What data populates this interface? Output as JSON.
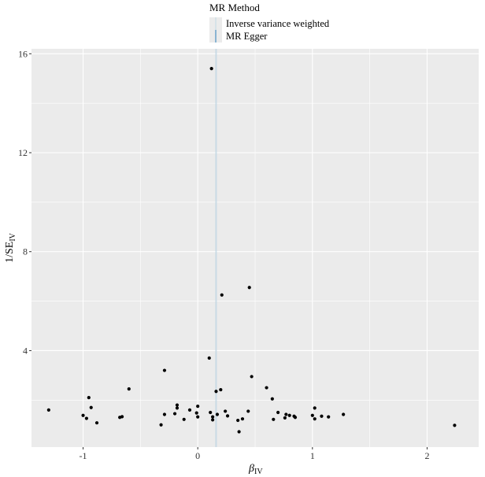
{
  "chart_data": {
    "type": "scatter",
    "title": "",
    "xlabel": "β",
    "xlabel_sub": "IV",
    "ylabel": "1/SE",
    "ylabel_sub": "IV",
    "xlim": [
      -1.45,
      2.45
    ],
    "ylim": [
      0.1,
      16.2
    ],
    "xticks": [
      -1,
      0,
      1,
      2
    ],
    "xtick_labels": [
      "-1",
      "0",
      "1",
      "2"
    ],
    "yticks": [
      4,
      8,
      12,
      16
    ],
    "ytick_labels": [
      "4",
      "8",
      "12",
      "16"
    ],
    "grid": true,
    "legend": {
      "position": "top",
      "title": "MR Method",
      "entries": [
        {
          "label": "Inverse variance weighted",
          "color": "#c9dbe6"
        },
        {
          "label": "MR Egger",
          "color": "#4a90c2"
        }
      ]
    },
    "vlines": [
      {
        "x": 0.16,
        "series": "MR Egger",
        "color": "#4a90c2"
      },
      {
        "x": 0.16,
        "series": "Inverse variance weighted",
        "color": "#c9dbe6"
      }
    ],
    "points": [
      {
        "x": 0.12,
        "y": 15.4
      },
      {
        "x": 0.45,
        "y": 6.55
      },
      {
        "x": 0.21,
        "y": 6.25
      },
      {
        "x": 0.1,
        "y": 3.7
      },
      {
        "x": -0.29,
        "y": 3.2
      },
      {
        "x": 0.47,
        "y": 2.95
      },
      {
        "x": 0.6,
        "y": 2.5
      },
      {
        "x": -0.6,
        "y": 2.45
      },
      {
        "x": 0.2,
        "y": 2.42
      },
      {
        "x": 0.16,
        "y": 2.35
      },
      {
        "x": -0.95,
        "y": 2.1
      },
      {
        "x": 0.65,
        "y": 2.05
      },
      {
        "x": -0.18,
        "y": 1.8
      },
      {
        "x": 0.0,
        "y": 1.75
      },
      {
        "x": -0.93,
        "y": 1.7
      },
      {
        "x": -0.18,
        "y": 1.68
      },
      {
        "x": 1.02,
        "y": 1.68
      },
      {
        "x": -1.3,
        "y": 1.6
      },
      {
        "x": -0.07,
        "y": 1.6
      },
      {
        "x": 0.24,
        "y": 1.55
      },
      {
        "x": 0.44,
        "y": 1.55
      },
      {
        "x": 0.11,
        "y": 1.5
      },
      {
        "x": 0.7,
        "y": 1.5
      },
      {
        "x": -0.01,
        "y": 1.48
      },
      {
        "x": -0.2,
        "y": 1.45
      },
      {
        "x": -0.29,
        "y": 1.42
      },
      {
        "x": 0.17,
        "y": 1.42
      },
      {
        "x": 0.77,
        "y": 1.42
      },
      {
        "x": 1.27,
        "y": 1.42
      },
      {
        "x": -1.0,
        "y": 1.38
      },
      {
        "x": 0.8,
        "y": 1.38
      },
      {
        "x": 1.0,
        "y": 1.38
      },
      {
        "x": 0.26,
        "y": 1.36
      },
      {
        "x": 0.84,
        "y": 1.35
      },
      {
        "x": 1.08,
        "y": 1.35
      },
      {
        "x": -0.66,
        "y": 1.33
      },
      {
        "x": 0.0,
        "y": 1.32
      },
      {
        "x": 0.13,
        "y": 1.32
      },
      {
        "x": 1.14,
        "y": 1.32
      },
      {
        "x": -0.68,
        "y": 1.3
      },
      {
        "x": 0.85,
        "y": 1.3
      },
      {
        "x": -0.97,
        "y": 1.26
      },
      {
        "x": 0.39,
        "y": 1.24
      },
      {
        "x": -0.12,
        "y": 1.22
      },
      {
        "x": 0.66,
        "y": 1.22
      },
      {
        "x": 0.13,
        "y": 1.2
      },
      {
        "x": 0.35,
        "y": 1.18
      },
      {
        "x": 0.76,
        "y": 1.28
      },
      {
        "x": 1.02,
        "y": 1.24
      },
      {
        "x": -0.88,
        "y": 1.08
      },
      {
        "x": -0.32,
        "y": 1.0
      },
      {
        "x": 2.24,
        "y": 0.98
      },
      {
        "x": 0.36,
        "y": 0.72
      }
    ],
    "colors": {
      "panel": "#ebebeb",
      "grid": "#ffffff",
      "point": "#000000",
      "tick": "#333333"
    }
  }
}
